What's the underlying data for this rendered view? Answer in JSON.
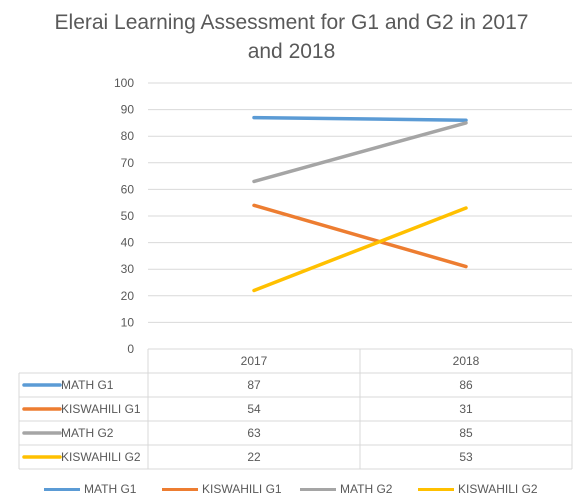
{
  "chart_data": {
    "type": "line",
    "title_lines": [
      "Elerai Learning Assessment for G1 and G2 in 2017",
      "and 2018"
    ],
    "categories": [
      "2017",
      "2018"
    ],
    "ylim": [
      0,
      100
    ],
    "yticks": [
      "0",
      "10",
      "20",
      "30",
      "40",
      "50",
      "60",
      "70",
      "80",
      "90",
      "100"
    ],
    "grid": true,
    "legend_position": "bottom",
    "data_table": true,
    "series": [
      {
        "name": "MATH G1",
        "values": [
          87,
          86
        ],
        "color": "#5B9BD5"
      },
      {
        "name": "KISWAHILI G1",
        "values": [
          54,
          31
        ],
        "color": "#ED7D31"
      },
      {
        "name": "MATH G2",
        "values": [
          63,
          85
        ],
        "color": "#A5A5A5"
      },
      {
        "name": "KISWAHILI G2",
        "values": [
          22,
          53
        ],
        "color": "#FFC000"
      }
    ]
  }
}
